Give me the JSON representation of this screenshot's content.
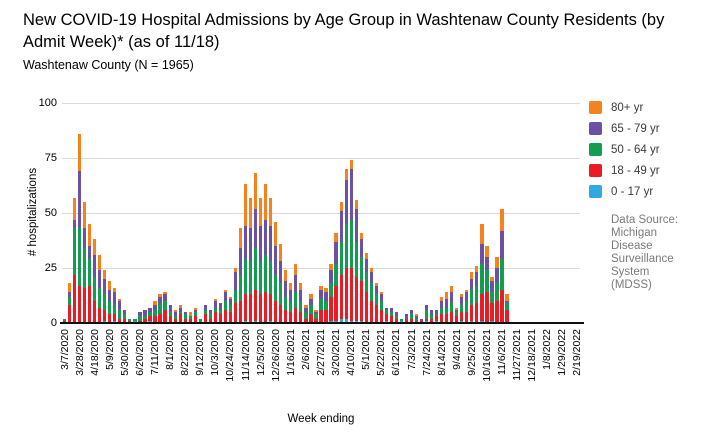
{
  "header": {
    "title": "New COVID-19 Hospital Admissions by Age Group in Washtenaw County Residents (by Admit Week)* (as of 11/18)",
    "subtitle": "Washtenaw County (N = 1965)"
  },
  "legend": {
    "items": [
      {
        "label": "80+ yr",
        "color": "#F5821F"
      },
      {
        "label": "65 - 79 yr",
        "color": "#6B51A3"
      },
      {
        "label": "50 - 64 yr",
        "color": "#129D50"
      },
      {
        "label": "18 - 49 yr",
        "color": "#EA1B23"
      },
      {
        "label": "0 - 17 yr",
        "color": "#2FA9DF"
      }
    ],
    "data_source_note": "Data Source: Michigan Disease Surveillance System (MDSS)"
  },
  "chart_data": {
    "type": "bar",
    "stacked": true,
    "title": "New COVID-19 Hospital Admissions by Age Group in Washtenaw County Residents (by Admit Week)* (as of 11/18)",
    "xlabel": "Week ending",
    "ylabel": "# hospitalizations",
    "ylim": [
      0,
      100
    ],
    "yticks": [
      0,
      25,
      50,
      75,
      100
    ],
    "grid": "horizontal",
    "legend_position": "right",
    "x_label_every": 3,
    "categories": [
      "3/7/2020",
      "3/14/2020",
      "3/21/2020",
      "3/28/2020",
      "4/4/2020",
      "4/11/2020",
      "4/18/2020",
      "4/25/2020",
      "5/2/2020",
      "5/9/2020",
      "5/16/2020",
      "5/23/2020",
      "5/30/2020",
      "6/6/2020",
      "6/13/2020",
      "6/20/2020",
      "6/27/2020",
      "7/4/2020",
      "7/11/2020",
      "7/18/2020",
      "7/25/2020",
      "8/1/2020",
      "8/8/2020",
      "8/15/2020",
      "8/22/2020",
      "8/29/2020",
      "9/5/2020",
      "9/12/2020",
      "9/19/2020",
      "9/26/2020",
      "10/3/2020",
      "10/10/2020",
      "10/17/2020",
      "10/24/2020",
      "10/31/2020",
      "11/7/2020",
      "11/14/2020",
      "11/21/2020",
      "11/28/2020",
      "12/5/2020",
      "12/12/2020",
      "12/19/2020",
      "12/26/2020",
      "1/2/2021",
      "1/9/2021",
      "1/16/2021",
      "1/23/2021",
      "1/30/2021",
      "2/6/2021",
      "2/13/2021",
      "2/20/2021",
      "2/27/2021",
      "3/6/2021",
      "3/13/2021",
      "3/20/2021",
      "3/27/2021",
      "4/3/2021",
      "4/10/2021",
      "4/17/2021",
      "4/24/2021",
      "5/1/2021",
      "5/8/2021",
      "5/15/2021",
      "5/22/2021",
      "5/29/2021",
      "6/5/2021",
      "6/12/2021",
      "6/19/2021",
      "6/26/2021",
      "7/3/2021",
      "7/10/2021",
      "7/17/2021",
      "7/24/2021",
      "7/31/2021",
      "8/7/2021",
      "8/14/2021",
      "8/21/2021",
      "8/28/2021",
      "9/4/2021",
      "9/11/2021",
      "9/18/2021",
      "9/25/2021",
      "10/2/2021",
      "10/9/2021",
      "10/16/2021",
      "10/23/2021",
      "10/30/2021",
      "11/6/2021",
      "11/13/2021",
      "11/20/2021",
      "11/27/2021",
      "12/4/2021",
      "12/11/2021",
      "12/18/2021",
      "12/25/2021",
      "1/1/2022",
      "1/8/2022",
      "1/15/2022",
      "1/22/2022",
      "1/29/2022",
      "2/5/2022",
      "2/12/2022",
      "2/19/2022"
    ],
    "series": [
      {
        "name": "0 - 17 yr",
        "color": "#2FA9DF",
        "values": [
          0,
          0,
          0,
          0,
          0,
          0,
          0,
          0,
          1,
          0,
          1,
          0,
          0,
          0,
          1,
          0,
          0,
          1,
          0,
          0,
          0,
          0,
          0,
          0,
          0,
          0,
          0,
          0,
          0,
          0,
          0,
          0,
          0,
          0,
          0,
          0,
          1,
          0,
          1,
          0,
          0,
          1,
          0,
          0,
          0,
          0,
          0,
          0,
          0,
          0,
          0,
          0,
          0,
          1,
          1,
          2,
          2,
          1,
          1,
          1,
          0,
          0,
          0,
          0,
          1,
          0,
          0,
          1,
          0,
          0,
          0,
          0,
          1,
          0,
          1,
          0,
          0,
          0,
          0,
          1,
          0,
          1,
          0,
          1,
          0,
          1,
          0,
          0,
          0,
          0,
          0,
          0,
          0,
          0,
          0,
          0,
          0,
          0,
          0,
          0,
          0,
          0,
          0
        ]
      },
      {
        "name": "18 - 49 yr",
        "color": "#EA1B23",
        "values": [
          1,
          8,
          22,
          17,
          16,
          17,
          10,
          7,
          5,
          4,
          3,
          2,
          2,
          1,
          0,
          1,
          2,
          2,
          3,
          4,
          6,
          3,
          2,
          4,
          2,
          2,
          3,
          0,
          4,
          2,
          5,
          4,
          6,
          5,
          9,
          10,
          12,
          13,
          14,
          13,
          14,
          12,
          10,
          8,
          6,
          5,
          7,
          5,
          2,
          4,
          2,
          6,
          6,
          11,
          16,
          20,
          23,
          24,
          20,
          18,
          14,
          10,
          8,
          6,
          3,
          3,
          2,
          0,
          2,
          2,
          1,
          1,
          1,
          2,
          2,
          4,
          4,
          5,
          3,
          4,
          5,
          7,
          9,
          12,
          14,
          8,
          10,
          15,
          6,
          0,
          0,
          0,
          0,
          0,
          0,
          0,
          0,
          0,
          0,
          0,
          0,
          0,
          0
        ]
      },
      {
        "name": "50 - 64 yr",
        "color": "#129D50",
        "values": [
          1,
          4,
          21,
          26,
          18,
          12,
          11,
          9,
          7,
          6,
          4,
          4,
          2,
          1,
          1,
          2,
          1,
          2,
          3,
          5,
          4,
          2,
          1,
          1,
          2,
          1,
          2,
          2,
          2,
          2,
          2,
          2,
          4,
          3,
          6,
          12,
          16,
          15,
          19,
          15,
          17,
          15,
          12,
          10,
          6,
          5,
          7,
          5,
          3,
          4,
          2,
          5,
          4,
          6,
          10,
          15,
          20,
          22,
          16,
          11,
          9,
          8,
          5,
          4,
          2,
          2,
          1,
          1,
          0,
          2,
          1,
          0,
          4,
          2,
          1,
          3,
          3,
          4,
          2,
          3,
          5,
          7,
          8,
          14,
          10,
          5,
          8,
          14,
          3,
          0,
          0,
          0,
          0,
          0,
          0,
          0,
          0,
          0,
          0,
          0,
          0,
          0,
          0
        ]
      },
      {
        "name": "65 - 79 yr",
        "color": "#6B51A3",
        "values": [
          0,
          2,
          4,
          26,
          9,
          6,
          10,
          8,
          7,
          5,
          6,
          4,
          2,
          0,
          0,
          2,
          3,
          2,
          2,
          3,
          3,
          3,
          2,
          2,
          1,
          0,
          1,
          0,
          2,
          2,
          3,
          3,
          4,
          3,
          8,
          12,
          15,
          15,
          18,
          16,
          16,
          16,
          13,
          10,
          7,
          5,
          8,
          5,
          2,
          3,
          1,
          4,
          4,
          6,
          10,
          14,
          20,
          23,
          15,
          8,
          6,
          5,
          4,
          3,
          1,
          2,
          2,
          0,
          2,
          2,
          1,
          1,
          2,
          2,
          2,
          3,
          4,
          5,
          1,
          4,
          4,
          5,
          6,
          9,
          6,
          5,
          7,
          13,
          1,
          0,
          0,
          0,
          0,
          0,
          0,
          0,
          0,
          0,
          0,
          0,
          0,
          0,
          0
        ]
      },
      {
        "name": "80+ yr",
        "color": "#F5821F",
        "values": [
          0,
          4,
          10,
          17,
          12,
          10,
          7,
          7,
          4,
          4,
          2,
          1,
          0,
          0,
          0,
          0,
          0,
          0,
          2,
          1,
          1,
          0,
          1,
          1,
          0,
          2,
          1,
          0,
          0,
          0,
          1,
          0,
          1,
          1,
          2,
          9,
          19,
          14,
          16,
          13,
          16,
          13,
          11,
          8,
          5,
          3,
          5,
          3,
          1,
          2,
          1,
          2,
          2,
          3,
          4,
          4,
          5,
          4,
          4,
          3,
          3,
          2,
          1,
          1,
          0,
          0,
          0,
          0,
          0,
          0,
          1,
          0,
          0,
          0,
          0,
          2,
          3,
          3,
          1,
          1,
          1,
          3,
          3,
          9,
          5,
          2,
          5,
          10,
          3,
          0,
          0,
          0,
          0,
          0,
          0,
          0,
          0,
          0,
          0,
          0,
          0,
          0,
          0
        ]
      }
    ]
  }
}
